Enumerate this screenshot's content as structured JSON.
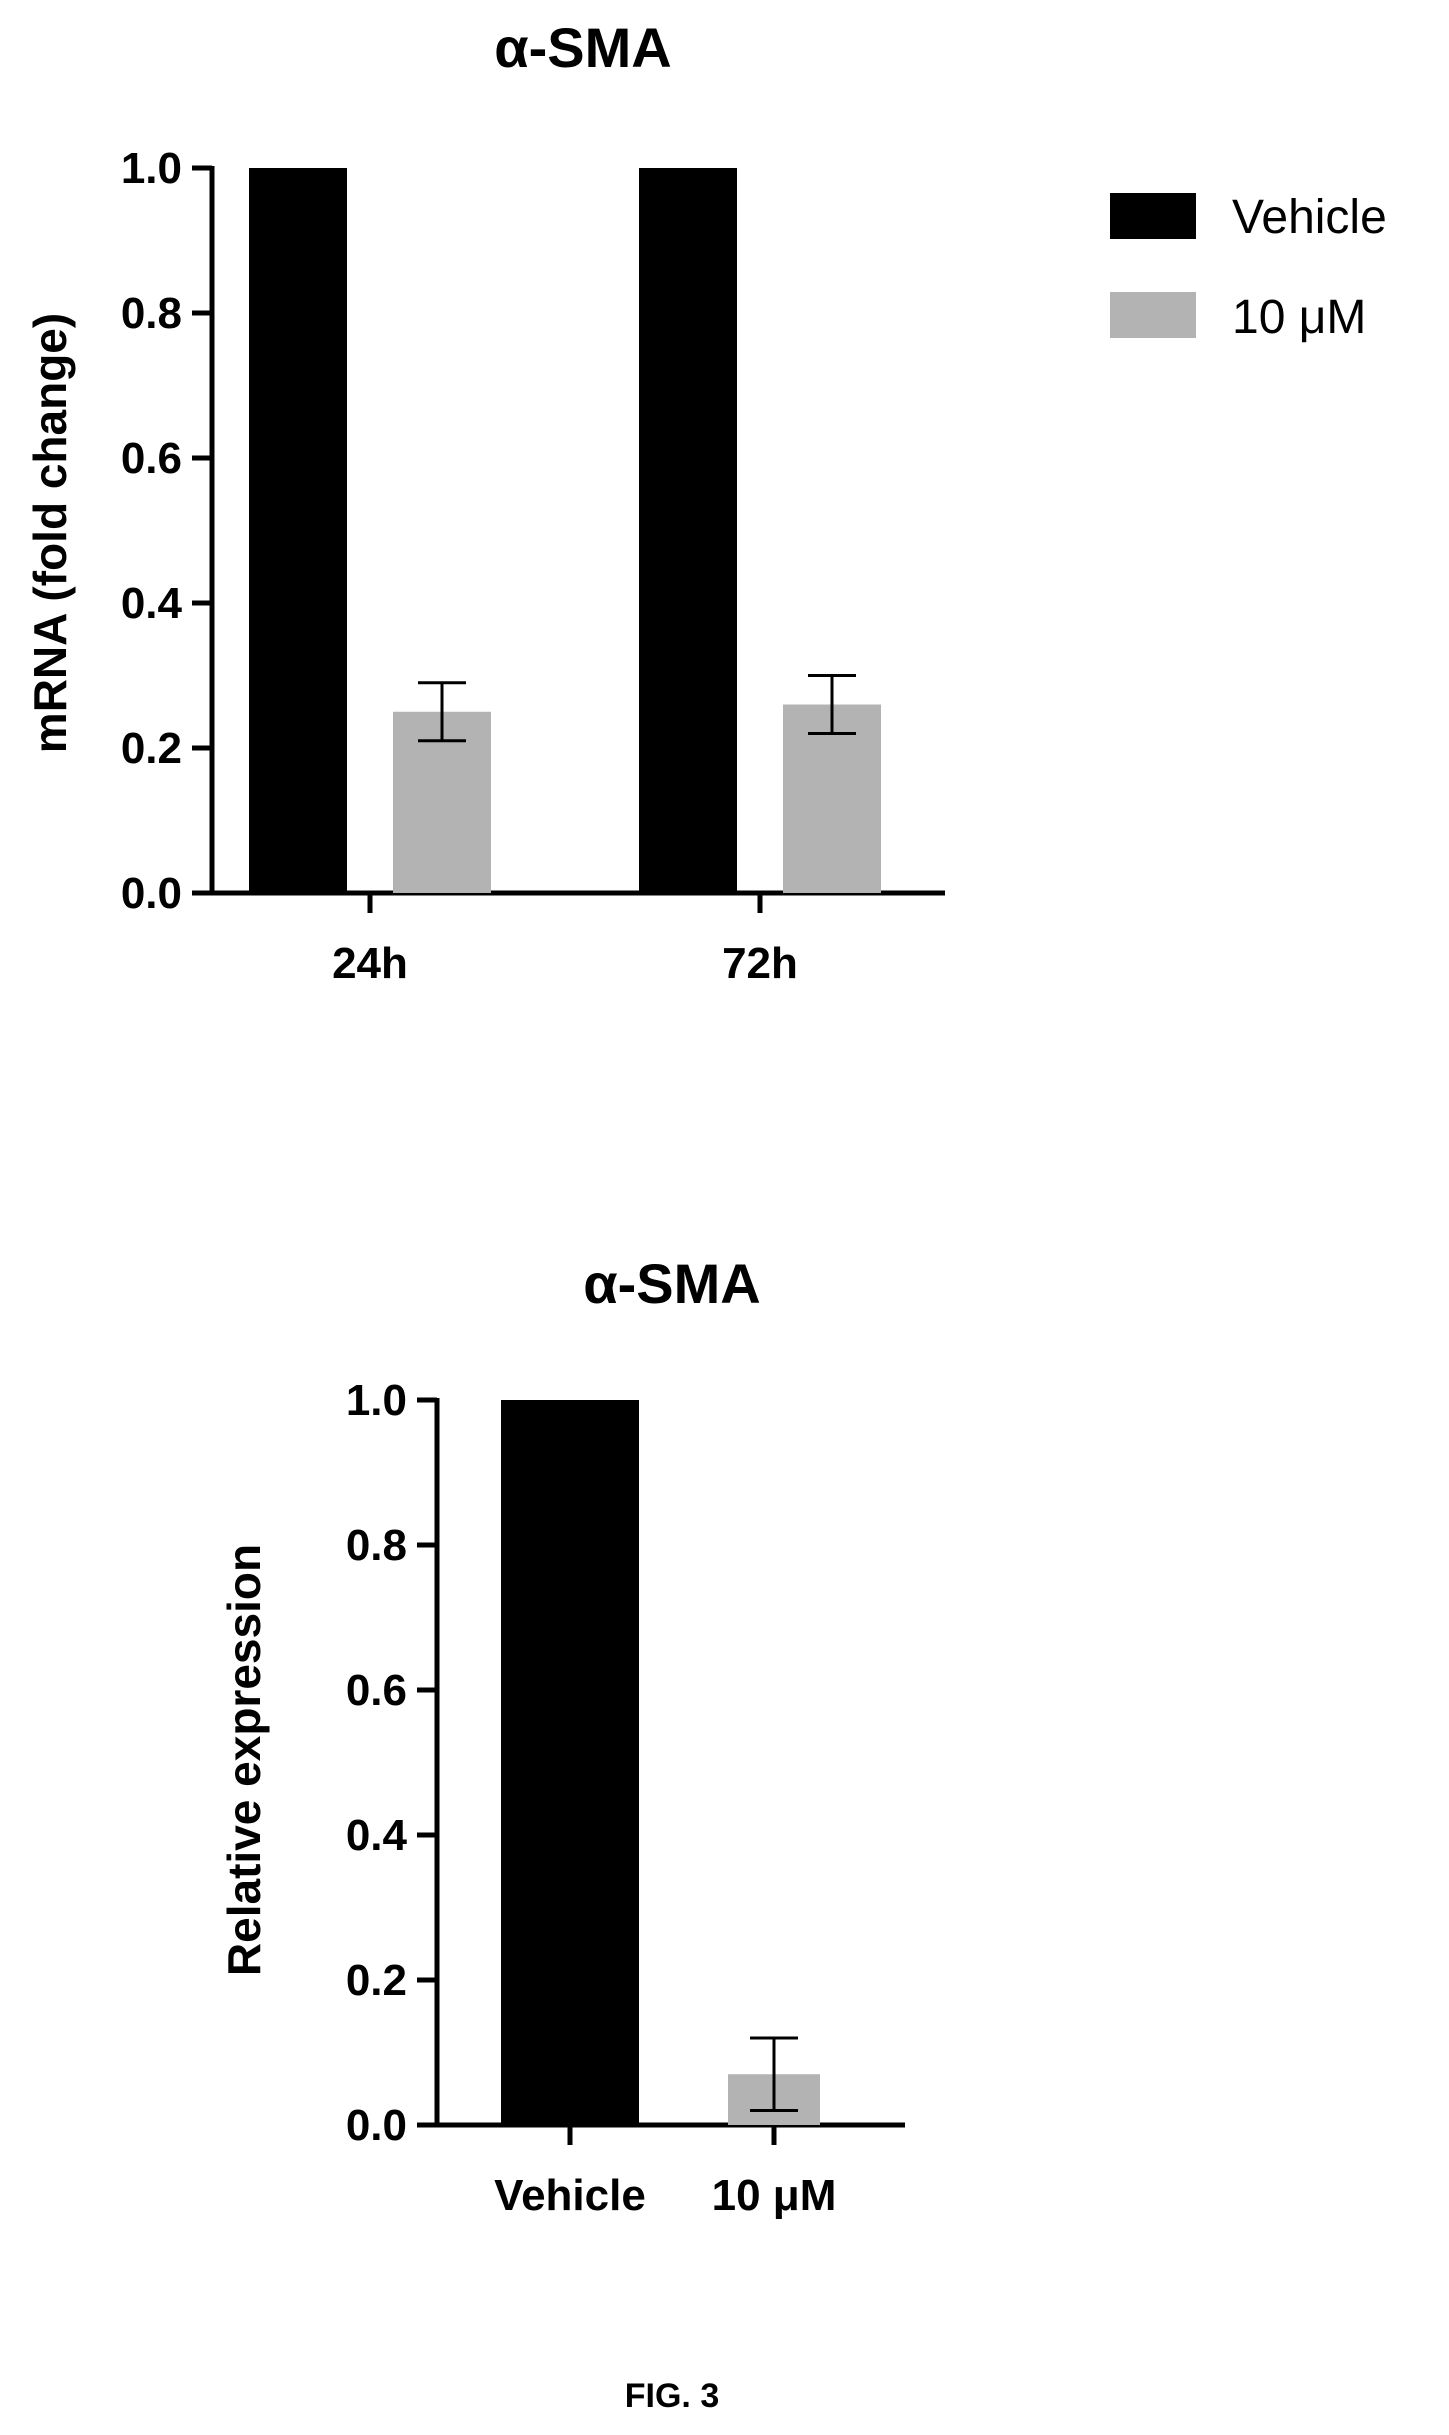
{
  "colors": {
    "vehicle": "#000000",
    "treated": "#b3b3b3",
    "axis": "#000000",
    "background": "#ffffff"
  },
  "legend_placement": "top-right",
  "chart_data": [
    {
      "type": "bar",
      "title": "α-SMA",
      "xlabel": "",
      "ylabel": "mRNA (fold change)",
      "ylim": [
        0,
        1.0
      ],
      "yticks": [
        "0.0",
        "0.2",
        "0.4",
        "0.6",
        "0.8",
        "1.0"
      ],
      "grid": false,
      "categories": [
        "24h",
        "72h"
      ],
      "series": [
        {
          "name": "Vehicle",
          "values": [
            1.0,
            1.0
          ],
          "error": [
            0,
            0
          ]
        },
        {
          "name": "10 μM",
          "values": [
            0.25,
            0.26
          ],
          "error": [
            0.04,
            0.04
          ]
        }
      ],
      "legend": [
        "Vehicle",
        "10 μM"
      ]
    },
    {
      "type": "bar",
      "title": "α-SMA",
      "xlabel": "",
      "ylabel": "Relative expression",
      "ylim": [
        0,
        1.0
      ],
      "yticks": [
        "0.0",
        "0.2",
        "0.4",
        "0.6",
        "0.8",
        "1.0"
      ],
      "grid": false,
      "categories": [
        "Vehicle",
        "10 μM"
      ],
      "values": [
        1.0,
        0.07
      ],
      "error": [
        0,
        0.05
      ]
    }
  ],
  "caption": "FIG. 3"
}
